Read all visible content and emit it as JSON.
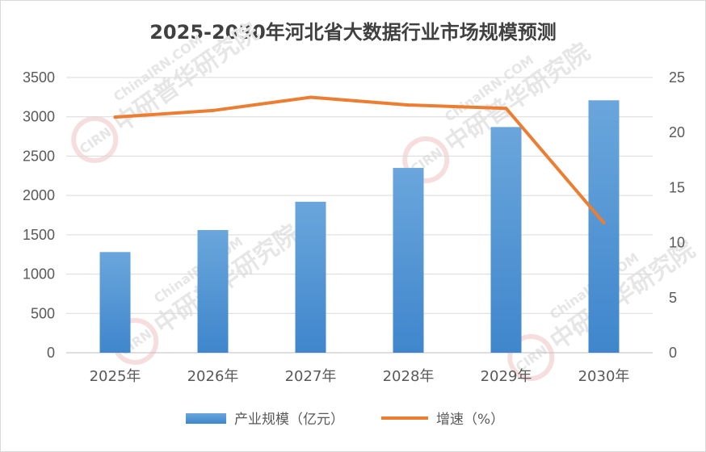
{
  "chart_data": {
    "type": "bar",
    "title": "2025-2030年河北省大数据行业市场规模预测",
    "categories": [
      "2025年",
      "2026年",
      "2027年",
      "2028年",
      "2029年",
      "2030年"
    ],
    "series": [
      {
        "name": "产业规模（亿元）",
        "type": "bar",
        "axis": "left",
        "color": "#5b9bd5",
        "values": [
          1280,
          1560,
          1920,
          2350,
          2870,
          3210
        ]
      },
      {
        "name": "增速（%）",
        "type": "line",
        "axis": "right",
        "color": "#ed7d31",
        "values": [
          21.4,
          22.0,
          23.2,
          22.5,
          22.2,
          11.8
        ]
      }
    ],
    "ylim_left": [
      0,
      3500
    ],
    "yticks_left": [
      0,
      500,
      1000,
      1500,
      2000,
      2500,
      3000,
      3500
    ],
    "ylim_right": [
      0,
      25
    ],
    "yticks_right": [
      0,
      5,
      10,
      15,
      20,
      25
    ],
    "grid": true,
    "legend_position": "bottom"
  },
  "watermark": {
    "brand": "中研普华研究院",
    "url": "ChinaIRN.COM",
    "logo": "CIRN"
  }
}
